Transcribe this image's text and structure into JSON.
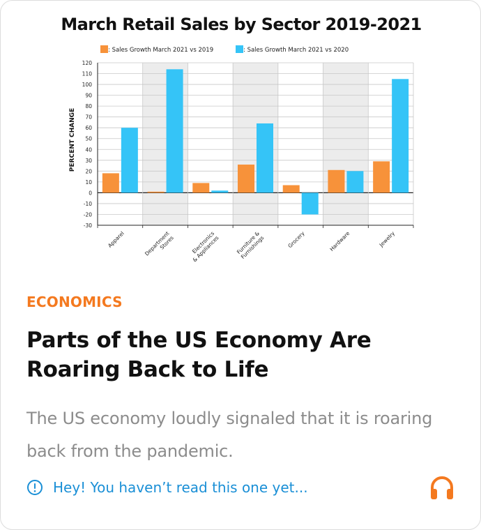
{
  "article": {
    "category": "ECONOMICS",
    "headline": "Parts of the US Economy Are Roaring Back to Life",
    "summary": "The US economy loudly signaled that it is roaring back from the pandemic.",
    "unread_notice": "Hey! You haven’t read this one yet...",
    "unread_icon": "info-circle-icon",
    "listen_icon": "headphones-icon",
    "colors": {
      "category": "#f4791f",
      "notice": "#1a8fd6",
      "headphones": "#f4791f"
    }
  },
  "chart_data": {
    "type": "bar",
    "title": "March Retail Sales by Sector 2019-2021",
    "ylabel": "PERCENT CHANGE",
    "xlabel": "",
    "categories": [
      "Apparel",
      "Department Stores",
      "Electronics & Appliances",
      "Furniture & Furnishings",
      "Grocery",
      "Hardware",
      "Jewelry"
    ],
    "category_tick_labels": [
      [
        "Apparel"
      ],
      [
        "Department",
        "Stores"
      ],
      [
        "Electronics",
        "& Appliances"
      ],
      [
        "Furniture &",
        "Furnishings"
      ],
      [
        "Grocery"
      ],
      [
        "Hardware"
      ],
      [
        "Jewelry"
      ]
    ],
    "series": [
      {
        "name": ": Sales Growth March 2021 vs 2019",
        "color": "#f7923a",
        "values": [
          18,
          1,
          9,
          26,
          7,
          21,
          29
        ]
      },
      {
        "name": ": Sales Growth March 2021 vs 2020",
        "color": "#35c4f7",
        "values": [
          60,
          114,
          2,
          64,
          -20,
          20,
          105
        ]
      }
    ],
    "ylim": [
      -30,
      120
    ],
    "yticks": [
      -30,
      -20,
      -10,
      0,
      10,
      20,
      30,
      40,
      50,
      60,
      70,
      80,
      90,
      100,
      110,
      120
    ],
    "grid": true,
    "shaded_categories": [
      "Department Stores",
      "Furniture & Furnishings",
      "Hardware"
    ],
    "legend_position": "top-center"
  }
}
